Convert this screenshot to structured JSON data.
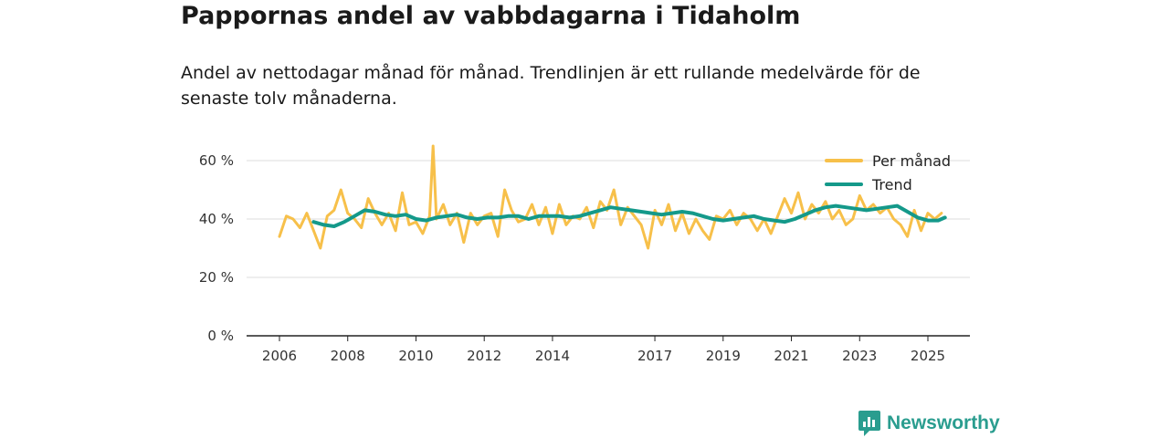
{
  "chart_data": {
    "type": "line",
    "title": "Pappornas andel av vabbdagarna i Tidaholm",
    "subtitle": "Andel av nettodagar månad för månad. Trendlinjen är ett rullande medelvärde för de senaste tolv månaderna.",
    "xlabel": "",
    "ylabel": "",
    "ylim": [
      0,
      65
    ],
    "xlim": [
      2005.0,
      2026.0
    ],
    "y_ticks": [
      0,
      20,
      40,
      60
    ],
    "y_tick_labels": [
      "0 %",
      "20 %",
      "40 %",
      "60 %"
    ],
    "x_ticks": [
      2006,
      2008,
      2010,
      2012,
      2014,
      2017,
      2019,
      2021,
      2023,
      2025
    ],
    "x_tick_labels": [
      "2006",
      "2008",
      "2010",
      "2012",
      "2014",
      "2017",
      "2019",
      "2021",
      "2023",
      "2025"
    ],
    "grid": true,
    "legend_position": "top-right",
    "series": [
      {
        "name": "Per månad",
        "color": "#f7c04a",
        "x": [
          2006.0,
          2006.2,
          2006.4,
          2006.6,
          2006.8,
          2007.0,
          2007.2,
          2007.4,
          2007.6,
          2007.8,
          2008.0,
          2008.2,
          2008.4,
          2008.6,
          2008.8,
          2009.0,
          2009.2,
          2009.4,
          2009.6,
          2009.8,
          2010.0,
          2010.2,
          2010.4,
          2010.5,
          2010.6,
          2010.8,
          2011.0,
          2011.2,
          2011.4,
          2011.6,
          2011.8,
          2012.0,
          2012.2,
          2012.4,
          2012.6,
          2012.8,
          2013.0,
          2013.2,
          2013.4,
          2013.6,
          2013.8,
          2014.0,
          2014.2,
          2014.4,
          2014.6,
          2014.8,
          2015.0,
          2015.2,
          2015.4,
          2015.6,
          2015.8,
          2016.0,
          2016.2,
          2016.4,
          2016.6,
          2016.8,
          2017.0,
          2017.2,
          2017.4,
          2017.6,
          2017.8,
          2018.0,
          2018.2,
          2018.4,
          2018.6,
          2018.8,
          2019.0,
          2019.2,
          2019.4,
          2019.6,
          2019.8,
          2020.0,
          2020.2,
          2020.4,
          2020.6,
          2020.8,
          2021.0,
          2021.2,
          2021.4,
          2021.6,
          2021.8,
          2022.0,
          2022.2,
          2022.4,
          2022.6,
          2022.8,
          2023.0,
          2023.2,
          2023.4,
          2023.6,
          2023.8,
          2024.0,
          2024.2,
          2024.4,
          2024.6,
          2024.8,
          2025.0,
          2025.2,
          2025.4
        ],
        "values": [
          34,
          41,
          40,
          37,
          42,
          36,
          30,
          41,
          43,
          50,
          42,
          40,
          37,
          47,
          42,
          38,
          42,
          36,
          49,
          38,
          39,
          35,
          41,
          65,
          40,
          45,
          38,
          42,
          32,
          42,
          38,
          41,
          42,
          34,
          50,
          43,
          39,
          40,
          45,
          38,
          44,
          35,
          45,
          38,
          41,
          40,
          44,
          37,
          46,
          43,
          50,
          38,
          44,
          41,
          38,
          30,
          43,
          38,
          45,
          36,
          42,
          35,
          40,
          36,
          33,
          41,
          40,
          43,
          38,
          42,
          40,
          36,
          40,
          35,
          41,
          47,
          42,
          49,
          40,
          45,
          42,
          46,
          40,
          43,
          38,
          40,
          48,
          43,
          45,
          42,
          44,
          40,
          38,
          34,
          43,
          36,
          42,
          40,
          42
        ]
      },
      {
        "name": "Trend",
        "color": "#14998a",
        "x": [
          2007.0,
          2007.3,
          2007.6,
          2007.9,
          2008.2,
          2008.5,
          2008.8,
          2009.1,
          2009.4,
          2009.7,
          2010.0,
          2010.3,
          2010.6,
          2010.9,
          2011.2,
          2011.5,
          2011.8,
          2012.1,
          2012.4,
          2012.7,
          2013.0,
          2013.3,
          2013.6,
          2013.9,
          2014.2,
          2014.5,
          2014.8,
          2015.1,
          2015.4,
          2015.7,
          2016.0,
          2016.3,
          2016.6,
          2016.9,
          2017.2,
          2017.5,
          2017.8,
          2018.1,
          2018.4,
          2018.7,
          2019.0,
          2019.3,
          2019.6,
          2019.9,
          2020.2,
          2020.5,
          2020.8,
          2021.1,
          2021.4,
          2021.7,
          2022.0,
          2022.3,
          2022.6,
          2022.9,
          2023.2,
          2023.5,
          2023.8,
          2024.1,
          2024.4,
          2024.7,
          2025.0,
          2025.3,
          2025.5
        ],
        "values": [
          39,
          38,
          37.5,
          39,
          41,
          43,
          42.5,
          41.5,
          41,
          41.5,
          40,
          39.5,
          40.5,
          41,
          41.5,
          40.5,
          40,
          40.5,
          40.5,
          41,
          41,
          40,
          41,
          41,
          41,
          40.5,
          41,
          42,
          43,
          44,
          43.5,
          43,
          42.5,
          42,
          41.5,
          42,
          42.5,
          42,
          41,
          40,
          39.5,
          40,
          40.5,
          41,
          40,
          39.5,
          39,
          40,
          41.5,
          43,
          44,
          44.5,
          44,
          43.5,
          43,
          43.5,
          44,
          44.5,
          42.5,
          40.5,
          39.5,
          39.5,
          40.5
        ]
      }
    ]
  },
  "brand": {
    "name": "Newsworthy",
    "color": "#2a9d8f"
  }
}
